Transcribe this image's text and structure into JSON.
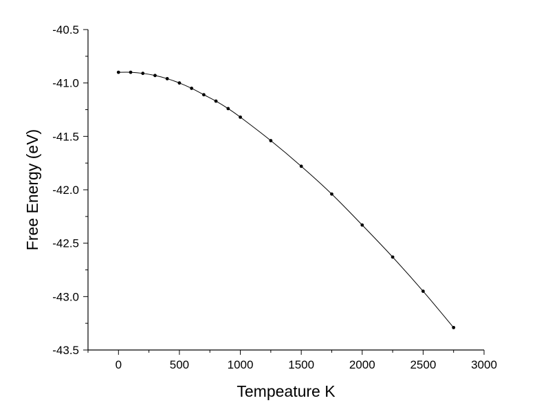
{
  "chart_data": {
    "type": "line",
    "title": "",
    "xlabel": "Tempeature K",
    "ylabel": "Free Energy (eV)",
    "xlim": [
      -250,
      3000
    ],
    "ylim": [
      -43.5,
      -40.5
    ],
    "x_ticks": [
      0,
      500,
      1000,
      1500,
      2000,
      2500,
      3000
    ],
    "y_ticks": [
      -40.5,
      -41.0,
      -41.5,
      -42.0,
      -42.5,
      -43.0,
      -43.5
    ],
    "x_tick_labels": [
      "0",
      "500",
      "1000",
      "1500",
      "2000",
      "2500",
      "3000"
    ],
    "y_tick_labels": [
      "-40.5",
      "-41.0",
      "-41.5",
      "-42.0",
      "-42.5",
      "-43.0",
      "-43.5"
    ],
    "grid": false,
    "legend": "none",
    "series": [
      {
        "marker": "circle",
        "color": "#000000",
        "x": [
          0,
          100,
          200,
          300,
          400,
          500,
          600,
          700,
          800,
          900,
          1000,
          1250,
          1500,
          1750,
          2000,
          2250,
          2500,
          2750
        ],
        "y": [
          -40.9,
          -40.9,
          -40.91,
          -40.93,
          -40.96,
          -41.0,
          -41.05,
          -41.11,
          -41.17,
          -41.24,
          -41.32,
          -41.54,
          -41.78,
          -42.04,
          -42.33,
          -42.63,
          -42.95,
          -43.29
        ]
      }
    ]
  }
}
